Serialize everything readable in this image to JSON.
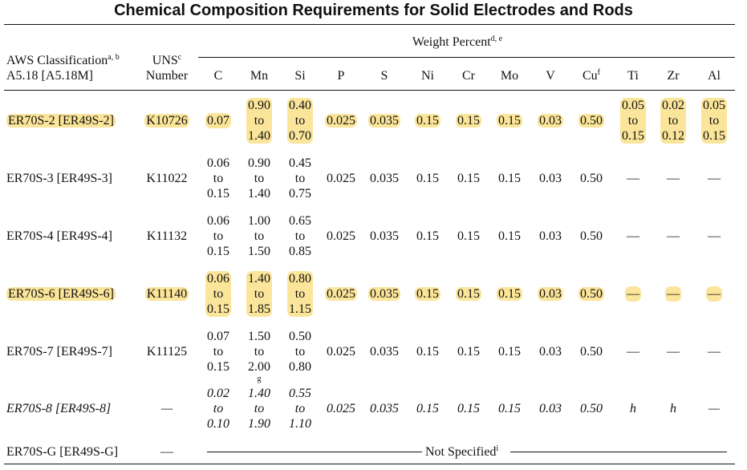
{
  "title": "Chemical Composition Requirements for Solid Electrodes and Rods",
  "header": {
    "aws_label_line1": "AWS Classification",
    "aws_sup": "a, b",
    "aws_label_line2": "A5.18 [A5.18M]",
    "uns_line1": "UNS",
    "uns_sup": "c",
    "uns_line2": "Number",
    "weight_percent": "Weight Percent",
    "weight_sup": "d, e",
    "columns": [
      "C",
      "Mn",
      "Si",
      "P",
      "S",
      "Ni",
      "Cr",
      "Mo",
      "V",
      "Cu",
      "Ti",
      "Zr",
      "Al"
    ],
    "cu_sup": "f"
  },
  "rows": [
    {
      "aws": "ER70S-2 [ER49S-2]",
      "uns": "K10726",
      "highlight": true,
      "italic": false,
      "C": [
        "0.07"
      ],
      "Mn": [
        "0.90",
        "to",
        "1.40"
      ],
      "Si": [
        "0.40",
        "to",
        "0.70"
      ],
      "P": "0.025",
      "S": "0.035",
      "Ni": "0.15",
      "Cr": "0.15",
      "Mo": "0.15",
      "V": "0.03",
      "Cu": "0.50",
      "Ti": [
        "0.05",
        "to",
        "0.15"
      ],
      "Zr": [
        "0.02",
        "to",
        "0.12"
      ],
      "Al": [
        "0.05",
        "to",
        "0.15"
      ]
    },
    {
      "aws": "ER70S-3 [ER49S-3]",
      "uns": "K11022",
      "highlight": false,
      "italic": false,
      "C": [
        "0.06",
        "to",
        "0.15"
      ],
      "Mn": [
        "0.90",
        "to",
        "1.40"
      ],
      "Si": [
        "0.45",
        "to",
        "0.75"
      ],
      "P": "0.025",
      "S": "0.035",
      "Ni": "0.15",
      "Cr": "0.15",
      "Mo": "0.15",
      "V": "0.03",
      "Cu": "0.50",
      "Ti": [
        "—"
      ],
      "Zr": [
        "—"
      ],
      "Al": [
        "—"
      ]
    },
    {
      "aws": "ER70S-4 [ER49S-4]",
      "uns": "K11132",
      "highlight": false,
      "italic": false,
      "C": [
        "0.06",
        "to",
        "0.15"
      ],
      "Mn": [
        "1.00",
        "to",
        "1.50"
      ],
      "Si": [
        "0.65",
        "to",
        "0.85"
      ],
      "P": "0.025",
      "S": "0.035",
      "Ni": "0.15",
      "Cr": "0.15",
      "Mo": "0.15",
      "V": "0.03",
      "Cu": "0.50",
      "Ti": [
        "—"
      ],
      "Zr": [
        "—"
      ],
      "Al": [
        "—"
      ]
    },
    {
      "aws": "ER70S-6 [ER49S-6]",
      "uns": "K11140",
      "highlight": true,
      "italic": false,
      "C": [
        "0.06",
        "to",
        "0.15"
      ],
      "Mn": [
        "1.40",
        "to",
        "1.85"
      ],
      "Si": [
        "0.80",
        "to",
        "1.15"
      ],
      "P": "0.025",
      "S": "0.035",
      "Ni": "0.15",
      "Cr": "0.15",
      "Mo": "0.15",
      "V": "0.03",
      "Cu": "0.50",
      "Ti": [
        "—"
      ],
      "Zr": [
        "—"
      ],
      "Al": [
        "—"
      ]
    },
    {
      "aws": "ER70S-7 [ER49S-7]",
      "uns": "K11125",
      "highlight": false,
      "italic": false,
      "C": [
        "0.07",
        "to",
        "0.15"
      ],
      "Mn": [
        "1.50",
        "to",
        "2.00"
      ],
      "Mn_sup": "g",
      "Si": [
        "0.50",
        "to",
        "0.80"
      ],
      "P": "0.025",
      "S": "0.035",
      "Ni": "0.15",
      "Cr": "0.15",
      "Mo": "0.15",
      "V": "0.03",
      "Cu": "0.50",
      "Ti": [
        "—"
      ],
      "Zr": [
        "—"
      ],
      "Al": [
        "—"
      ]
    },
    {
      "aws": "ER70S-8 [ER49S-8]",
      "uns": "—",
      "highlight": false,
      "italic": true,
      "C": [
        "0.02",
        "to",
        "0.10"
      ],
      "Mn": [
        "1.40",
        "to",
        "1.90"
      ],
      "Si": [
        "0.55",
        "to",
        "1.10"
      ],
      "P": "0.025",
      "S": "0.035",
      "Ni": "0.15",
      "Cr": "0.15",
      "Mo": "0.15",
      "V": "0.03",
      "Cu": "0.50",
      "Ti": [
        "h"
      ],
      "Zr": [
        "h"
      ],
      "Al": [
        "—"
      ]
    }
  ],
  "last_row": {
    "aws": "ER70S-G [ER49S-G]",
    "uns": "—",
    "text": "Not Specified",
    "sup": "i"
  },
  "colors": {
    "highlight": "#fbe59a",
    "text": "#111111"
  }
}
